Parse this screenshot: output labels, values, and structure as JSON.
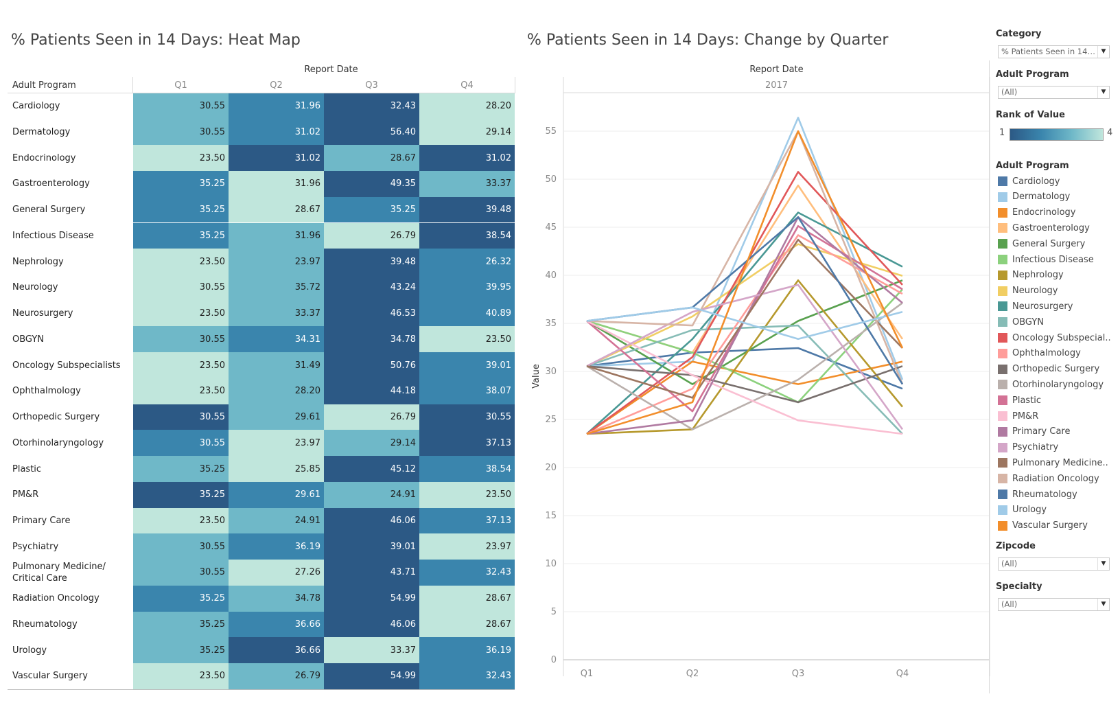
{
  "heatmap_title": "% Patients Seen in 14 Days: Heat Map",
  "linechart_title": "% Patients Seen in 14 Days: Change by Quarter",
  "report_date_label": "Report Date",
  "row_header": "Adult Program",
  "year_label": "2017",
  "y_axis_label": "Value",
  "colors": {
    "rank1": "#2c5985",
    "rank2": "#3a85ad",
    "rank3": "#6fb8c8",
    "rank4": "#c0e6dc"
  },
  "filters": {
    "category_label": "Category",
    "category_value": "% Patients Seen in 14 ...",
    "adult_program_label": "Adult Program",
    "adult_program_value": "(All)",
    "rank_label": "Rank of Value",
    "rank_min": "1",
    "rank_max": "4",
    "legend_label": "Adult Program",
    "zipcode_label": "Zipcode",
    "zipcode_value": "(All)",
    "specialty_label": "Specialty",
    "specialty_value": "(All)"
  },
  "legend": [
    {
      "name": "Cardiology",
      "color": "#4e79a7"
    },
    {
      "name": "Dermatology",
      "color": "#a0cbe8"
    },
    {
      "name": "Endocrinology",
      "color": "#f28e2b"
    },
    {
      "name": "Gastroenterology",
      "color": "#ffbe7d"
    },
    {
      "name": "General Surgery",
      "color": "#59a14f"
    },
    {
      "name": "Infectious Disease",
      "color": "#8cd17d"
    },
    {
      "name": "Nephrology",
      "color": "#b6992d"
    },
    {
      "name": "Neurology",
      "color": "#f1ce63"
    },
    {
      "name": "Neurosurgery",
      "color": "#499894"
    },
    {
      "name": "OBGYN",
      "color": "#86bcb6"
    },
    {
      "name": "Oncology Subspecial..",
      "color": "#e15759"
    },
    {
      "name": "Ophthalmology",
      "color": "#ff9d9a"
    },
    {
      "name": "Orthopedic Surgery",
      "color": "#79706e"
    },
    {
      "name": "Otorhinolaryngology",
      "color": "#bab0ac"
    },
    {
      "name": "Plastic",
      "color": "#d37295"
    },
    {
      "name": "PM&R",
      "color": "#fabfd2"
    },
    {
      "name": "Primary Care",
      "color": "#b07aa1"
    },
    {
      "name": "Psychiatry",
      "color": "#d4a6c8"
    },
    {
      "name": "Pulmonary Medicine..",
      "color": "#9d7660"
    },
    {
      "name": "Radiation Oncology",
      "color": "#d7b5a6"
    },
    {
      "name": "Rheumatology",
      "color": "#4e79a7"
    },
    {
      "name": "Urology",
      "color": "#a0cbe8"
    },
    {
      "name": "Vascular Surgery",
      "color": "#f28e2b"
    }
  ],
  "chart_data": [
    {
      "type": "heatmap",
      "title": "% Patients Seen in 14 Days: Heat Map",
      "xlabel": "Report Date",
      "ylabel": "Adult Program",
      "categories": [
        "Q1",
        "Q2",
        "Q3",
        "Q4"
      ],
      "rows": [
        {
          "name": "Cardiology",
          "values": [
            "30.55",
            "31.96",
            "32.43",
            "28.20"
          ],
          "ranks": [
            3,
            2,
            1,
            4
          ]
        },
        {
          "name": "Dermatology",
          "values": [
            "30.55",
            "31.02",
            "56.40",
            "29.14"
          ],
          "ranks": [
            3,
            2,
            1,
            4
          ]
        },
        {
          "name": "Endocrinology",
          "values": [
            "23.50",
            "31.02",
            "28.67",
            "31.02"
          ],
          "ranks": [
            4,
            1,
            3,
            1
          ]
        },
        {
          "name": "Gastroenterology",
          "values": [
            "35.25",
            "31.96",
            "49.35",
            "33.37"
          ],
          "ranks": [
            2,
            4,
            1,
            3
          ]
        },
        {
          "name": "General Surgery",
          "values": [
            "35.25",
            "28.67",
            "35.25",
            "39.48"
          ],
          "ranks": [
            2,
            4,
            2,
            1
          ]
        },
        {
          "name": "Infectious Disease",
          "values": [
            "35.25",
            "31.96",
            "26.79",
            "38.54"
          ],
          "ranks": [
            2,
            3,
            4,
            1
          ]
        },
        {
          "name": "Nephrology",
          "values": [
            "23.50",
            "23.97",
            "39.48",
            "26.32"
          ],
          "ranks": [
            4,
            3,
            1,
            2
          ]
        },
        {
          "name": "Neurology",
          "values": [
            "30.55",
            "35.72",
            "43.24",
            "39.95"
          ],
          "ranks": [
            4,
            3,
            1,
            2
          ]
        },
        {
          "name": "Neurosurgery",
          "values": [
            "23.50",
            "33.37",
            "46.53",
            "40.89"
          ],
          "ranks": [
            4,
            3,
            1,
            2
          ]
        },
        {
          "name": "OBGYN",
          "values": [
            "30.55",
            "34.31",
            "34.78",
            "23.50"
          ],
          "ranks": [
            3,
            2,
            1,
            4
          ]
        },
        {
          "name": "Oncology Subspecialists",
          "values": [
            "23.50",
            "31.49",
            "50.76",
            "39.01"
          ],
          "ranks": [
            4,
            3,
            1,
            2
          ]
        },
        {
          "name": "Ophthalmology",
          "values": [
            "23.50",
            "28.20",
            "44.18",
            "38.07"
          ],
          "ranks": [
            4,
            3,
            1,
            2
          ]
        },
        {
          "name": "Orthopedic Surgery",
          "values": [
            "30.55",
            "29.61",
            "26.79",
            "30.55"
          ],
          "ranks": [
            1,
            3,
            4,
            1
          ]
        },
        {
          "name": "Otorhinolaryngology",
          "values": [
            "30.55",
            "23.97",
            "29.14",
            "37.13"
          ],
          "ranks": [
            2,
            4,
            3,
            1
          ]
        },
        {
          "name": "Plastic",
          "values": [
            "35.25",
            "25.85",
            "45.12",
            "38.54"
          ],
          "ranks": [
            3,
            4,
            1,
            2
          ]
        },
        {
          "name": "PM&R",
          "values": [
            "35.25",
            "29.61",
            "24.91",
            "23.50"
          ],
          "ranks": [
            1,
            2,
            3,
            4
          ]
        },
        {
          "name": "Primary Care",
          "values": [
            "23.50",
            "24.91",
            "46.06",
            "37.13"
          ],
          "ranks": [
            4,
            3,
            1,
            2
          ]
        },
        {
          "name": "Psychiatry",
          "values": [
            "30.55",
            "36.19",
            "39.01",
            "23.97"
          ],
          "ranks": [
            3,
            2,
            1,
            4
          ]
        },
        {
          "name": "Pulmonary Medicine/\nCritical Care",
          "values": [
            "30.55",
            "27.26",
            "43.71",
            "32.43"
          ],
          "ranks": [
            3,
            4,
            1,
            2
          ]
        },
        {
          "name": "Radiation Oncology",
          "values": [
            "35.25",
            "34.78",
            "54.99",
            "28.67"
          ],
          "ranks": [
            2,
            3,
            1,
            4
          ]
        },
        {
          "name": "Rheumatology",
          "values": [
            "35.25",
            "36.66",
            "46.06",
            "28.67"
          ],
          "ranks": [
            3,
            2,
            1,
            4
          ]
        },
        {
          "name": "Urology",
          "values": [
            "35.25",
            "36.66",
            "33.37",
            "36.19"
          ],
          "ranks": [
            3,
            1,
            4,
            2
          ]
        },
        {
          "name": "Vascular Surgery",
          "values": [
            "23.50",
            "26.79",
            "54.99",
            "32.43"
          ],
          "ranks": [
            4,
            3,
            1,
            2
          ]
        }
      ]
    },
    {
      "type": "line",
      "title": "% Patients Seen in 14 Days: Change by Quarter",
      "xlabel": "Report Date",
      "ylabel": "Value",
      "categories": [
        "Q1",
        "Q2",
        "Q3",
        "Q4"
      ],
      "ylim": [
        0,
        59
      ],
      "yticks": [
        0,
        5,
        10,
        15,
        20,
        25,
        30,
        35,
        40,
        45,
        50,
        55
      ],
      "grid": true,
      "series": [
        {
          "name": "Cardiology",
          "values": [
            30.55,
            31.96,
            32.43,
            28.2
          ]
        },
        {
          "name": "Dermatology",
          "values": [
            30.55,
            31.02,
            56.4,
            29.14
          ]
        },
        {
          "name": "Endocrinology",
          "values": [
            23.5,
            31.02,
            28.67,
            31.02
          ]
        },
        {
          "name": "Gastroenterology",
          "values": [
            35.25,
            31.96,
            49.35,
            33.37
          ]
        },
        {
          "name": "General Surgery",
          "values": [
            35.25,
            28.67,
            35.25,
            39.48
          ]
        },
        {
          "name": "Infectious Disease",
          "values": [
            35.25,
            31.96,
            26.79,
            38.54
          ]
        },
        {
          "name": "Nephrology",
          "values": [
            23.5,
            23.97,
            39.48,
            26.32
          ]
        },
        {
          "name": "Neurology",
          "values": [
            30.55,
            35.72,
            43.24,
            39.95
          ]
        },
        {
          "name": "Neurosurgery",
          "values": [
            23.5,
            33.37,
            46.53,
            40.89
          ]
        },
        {
          "name": "OBGYN",
          "values": [
            30.55,
            34.31,
            34.78,
            23.5
          ]
        },
        {
          "name": "Oncology Subspecialists",
          "values": [
            23.5,
            31.49,
            50.76,
            39.01
          ]
        },
        {
          "name": "Ophthalmology",
          "values": [
            23.5,
            28.2,
            44.18,
            38.07
          ]
        },
        {
          "name": "Orthopedic Surgery",
          "values": [
            30.55,
            29.61,
            26.79,
            30.55
          ]
        },
        {
          "name": "Otorhinolaryngology",
          "values": [
            30.55,
            23.97,
            29.14,
            37.13
          ]
        },
        {
          "name": "Plastic",
          "values": [
            35.25,
            25.85,
            45.12,
            38.54
          ]
        },
        {
          "name": "PM&R",
          "values": [
            35.25,
            29.61,
            24.91,
            23.5
          ]
        },
        {
          "name": "Primary Care",
          "values": [
            23.5,
            24.91,
            46.06,
            37.13
          ]
        },
        {
          "name": "Psychiatry",
          "values": [
            30.55,
            36.19,
            39.01,
            23.97
          ]
        },
        {
          "name": "Pulmonary Medicine/Critical Care",
          "values": [
            30.55,
            27.26,
            43.71,
            32.43
          ]
        },
        {
          "name": "Radiation Oncology",
          "values": [
            35.25,
            34.78,
            54.99,
            28.67
          ]
        },
        {
          "name": "Rheumatology",
          "values": [
            35.25,
            36.66,
            46.06,
            28.67
          ]
        },
        {
          "name": "Urology",
          "values": [
            35.25,
            36.66,
            33.37,
            36.19
          ]
        },
        {
          "name": "Vascular Surgery",
          "values": [
            23.5,
            26.79,
            54.99,
            32.43
          ]
        }
      ]
    }
  ]
}
